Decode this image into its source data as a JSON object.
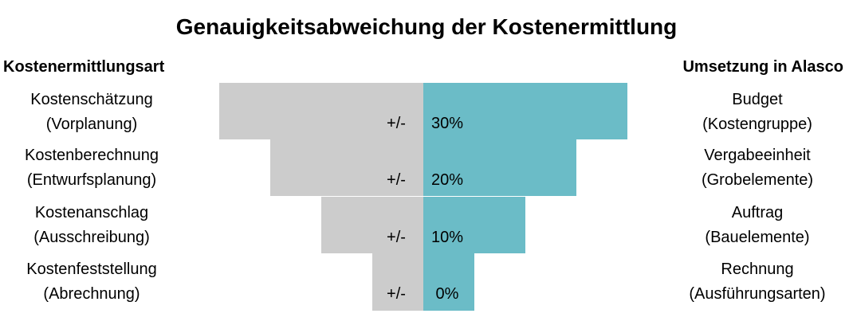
{
  "title": "Genauigkeitsabweichung der Kostenermittlung",
  "left_header": "Kostenermittlungsart",
  "right_header": "Umsetzung in Alasco",
  "prefix": "+/-",
  "colors": {
    "gray": "#cccccc",
    "teal": "#6bbcc7"
  },
  "chart_data": {
    "type": "bar",
    "orientation": "horizontal",
    "layout": "diverging-funnel",
    "categories": [
      "Kostenschätzung (Vorplanung)",
      "Kostenberechnung (Entwurfsplanung)",
      "Kostenanschlag (Ausschreibung)",
      "Kostenfeststellung (Abrechnung)"
    ],
    "values": [
      30,
      20,
      10,
      0
    ],
    "unit": "%",
    "value_labels": [
      "30%",
      "20%",
      "10%",
      "0%"
    ],
    "title": "Genauigkeitsabweichung der Kostenermittlung",
    "xlabel": "",
    "ylabel": ""
  },
  "rows": [
    {
      "left_line1": "Kostenschätzung",
      "left_line2": "(Vorplanung)",
      "right_line1": "Budget",
      "right_line2": "(Kostengruppe)",
      "value_label": "30%",
      "percent": 30
    },
    {
      "left_line1": "Kostenberechnung",
      "left_line2": "(Entwurfsplanung)",
      "right_line1": "Vergabeeinheit",
      "right_line2": "(Grobelemente)",
      "value_label": "20%",
      "percent": 20
    },
    {
      "left_line1": "Kostenanschlag",
      "left_line2": "(Ausschreibung)",
      "right_line1": "Auftrag",
      "right_line2": "(Bauelemente)",
      "value_label": "10%",
      "percent": 10
    },
    {
      "left_line1": "Kostenfeststellung",
      "left_line2": "(Abrechnung)",
      "right_line1": "Rechnung",
      "right_line2": "(Ausführungsarten)",
      "value_label": "0%",
      "percent": 0
    }
  ]
}
